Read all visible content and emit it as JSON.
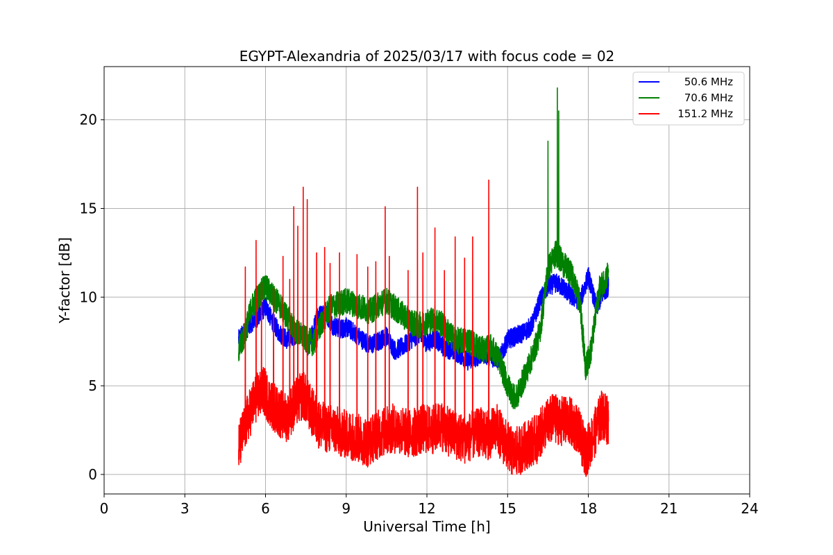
{
  "chart_data": {
    "type": "line",
    "title": "EGYPT-Alexandria of 2025/03/17 with focus code = 02",
    "xlabel": "Universal Time [h]",
    "ylabel": "Y-factor [dB]",
    "xlim": [
      0,
      24
    ],
    "ylim": [
      -1.1,
      23
    ],
    "xticks": [
      0,
      3,
      6,
      9,
      12,
      15,
      18,
      21,
      24
    ],
    "yticks": [
      0,
      5,
      10,
      15,
      20
    ],
    "grid": true,
    "legend_position": "top-right",
    "series": [
      {
        "name": "50.6 MHz",
        "color": "#0000ff",
        "x": [
          5.0,
          5.2,
          5.5,
          5.8,
          6.0,
          6.2,
          6.5,
          6.8,
          7.0,
          7.3,
          7.6,
          7.9,
          8.2,
          8.5,
          8.8,
          9.0,
          9.3,
          9.6,
          9.9,
          10.2,
          10.5,
          10.8,
          11.1,
          11.4,
          11.7,
          12.0,
          12.3,
          12.6,
          12.9,
          13.2,
          13.5,
          13.8,
          14.1,
          14.4,
          14.7,
          15.0,
          15.3,
          15.6,
          15.9,
          16.2,
          16.5,
          16.8,
          17.1,
          17.4,
          17.7,
          18.0,
          18.3,
          18.6,
          18.75
        ],
        "y": [
          7.6,
          8.0,
          8.6,
          9.0,
          9.5,
          8.8,
          8.0,
          7.6,
          7.8,
          8.0,
          7.2,
          8.8,
          9.2,
          8.4,
          8.2,
          8.3,
          8.0,
          7.6,
          7.3,
          7.5,
          7.8,
          7.0,
          7.2,
          7.6,
          7.9,
          7.4,
          7.7,
          7.2,
          7.0,
          6.8,
          6.4,
          6.6,
          6.8,
          6.6,
          6.5,
          7.6,
          7.8,
          8.0,
          8.4,
          9.8,
          10.6,
          10.8,
          10.5,
          10.0,
          9.8,
          11.2,
          9.4,
          10.4,
          10.6
        ]
      },
      {
        "name": "70.6 MHz",
        "color": "#008000",
        "x": [
          5.0,
          5.2,
          5.5,
          5.8,
          6.0,
          6.3,
          6.6,
          6.9,
          7.2,
          7.5,
          7.8,
          8.1,
          8.4,
          8.7,
          9.0,
          9.3,
          9.6,
          9.9,
          10.2,
          10.5,
          10.8,
          11.1,
          11.4,
          11.7,
          12.0,
          12.3,
          12.6,
          12.9,
          13.2,
          13.5,
          13.8,
          14.1,
          14.4,
          14.7,
          15.0,
          15.3,
          15.6,
          15.9,
          16.2,
          16.5,
          16.8,
          17.1,
          17.4,
          17.7,
          17.9,
          18.1,
          18.4,
          18.75
        ],
        "y": [
          7.0,
          7.8,
          9.5,
          10.2,
          10.6,
          10.0,
          9.4,
          8.6,
          8.0,
          7.6,
          7.4,
          8.6,
          9.4,
          9.6,
          9.8,
          9.6,
          9.4,
          9.2,
          9.6,
          9.8,
          9.4,
          9.0,
          8.6,
          8.4,
          8.6,
          8.8,
          8.4,
          7.8,
          7.5,
          7.6,
          7.3,
          7.0,
          7.2,
          6.4,
          5.0,
          4.2,
          5.4,
          6.6,
          8.0,
          11.6,
          12.5,
          11.8,
          11.2,
          9.6,
          6.0,
          7.0,
          10.4,
          11.4
        ]
      },
      {
        "name": "151.2 MHz",
        "color": "#ff0000",
        "x": [
          5.0,
          5.3,
          5.6,
          5.9,
          6.2,
          6.5,
          6.8,
          7.1,
          7.4,
          7.7,
          8.0,
          8.3,
          8.6,
          8.9,
          9.2,
          9.5,
          9.8,
          10.1,
          10.4,
          10.7,
          11.0,
          11.3,
          11.6,
          11.9,
          12.2,
          12.5,
          12.8,
          13.1,
          13.4,
          13.7,
          14.0,
          14.3,
          14.6,
          14.9,
          15.2,
          15.5,
          15.8,
          16.1,
          16.4,
          16.7,
          17.0,
          17.3,
          17.6,
          17.9,
          18.2,
          18.5,
          18.75
        ],
        "y": [
          1.5,
          3.0,
          4.2,
          4.8,
          4.0,
          3.5,
          3.2,
          4.0,
          4.5,
          3.6,
          2.8,
          2.6,
          2.5,
          2.3,
          2.2,
          2.0,
          1.8,
          2.2,
          2.4,
          2.6,
          2.5,
          2.3,
          2.4,
          2.6,
          2.5,
          2.8,
          2.4,
          2.2,
          2.0,
          2.2,
          2.4,
          2.2,
          2.6,
          1.8,
          1.2,
          1.4,
          1.8,
          2.0,
          2.8,
          3.2,
          3.0,
          3.0,
          2.6,
          1.2,
          2.2,
          3.4,
          3.0
        ]
      }
    ],
    "spikes_151_2": {
      "x": [
        5.25,
        5.65,
        5.85,
        6.3,
        6.65,
        6.9,
        7.05,
        7.2,
        7.4,
        7.55,
        7.9,
        8.2,
        8.4,
        8.75,
        9.4,
        9.8,
        10.1,
        10.45,
        10.6,
        11.3,
        11.65,
        11.85,
        12.3,
        12.65,
        13.05,
        13.4,
        13.7,
        14.3
      ],
      "y": [
        11.7,
        13.2,
        10.8,
        10.5,
        12.3,
        11.0,
        15.1,
        14.0,
        16.2,
        15.5,
        12.5,
        12.8,
        11.9,
        12.5,
        12.4,
        11.7,
        12.0,
        15.1,
        12.3,
        11.5,
        16.2,
        12.5,
        13.9,
        11.5,
        13.4,
        12.2,
        13.4,
        16.6
      ]
    },
    "spikes_70_6": {
      "x": [
        16.5,
        16.85,
        16.9
      ],
      "y": [
        18.8,
        21.8,
        20.5
      ]
    }
  }
}
